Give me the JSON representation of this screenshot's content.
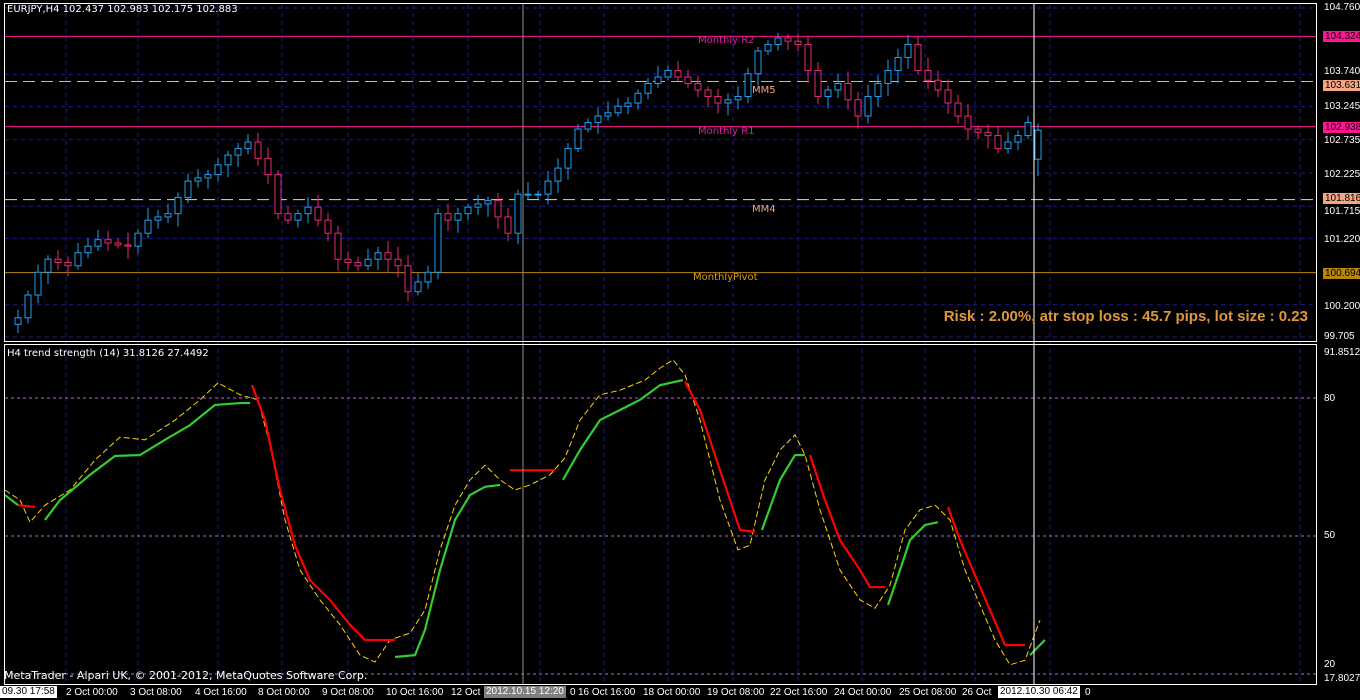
{
  "price_panel": {
    "title": "EURJPY,H4  102.437 102.983 102.175 102.883",
    "axis_labels": [
      "104.760",
      "103.740",
      "103.245",
      "102.735",
      "102.225",
      "101.715",
      "101.220",
      "100.200",
      "99.705"
    ],
    "axis_values": [
      104.76,
      103.74,
      103.245,
      102.735,
      102.225,
      101.715,
      101.22,
      100.2,
      99.705
    ],
    "range": [
      99.705,
      104.76
    ],
    "levels": [
      {
        "name": "Monthly R2",
        "value": 104.324,
        "label": "104.324",
        "color": "#ff1493",
        "style": "solid",
        "text_color": "#e0209a"
      },
      {
        "name": "MM5",
        "value": 103.631,
        "label": "103.631",
        "color": "#f4a582",
        "style": "dashed",
        "text_color": "#f4a582"
      },
      {
        "name": "Monthly R1",
        "value": 102.938,
        "label": "102.938",
        "color": "#ff1493",
        "style": "solid",
        "text_color": "#e0209a"
      },
      {
        "name": "MM4",
        "value": 101.816,
        "label": "101.816",
        "color": "#d8d8d8",
        "style": "dashed",
        "text_color": "#f4a582",
        "label_bg": "#f4a582"
      },
      {
        "name": "MonthlyPivot",
        "value": 100.694,
        "label": "100.694",
        "color": "#b8860b",
        "style": "solid",
        "text_color": "#d4a017"
      }
    ],
    "risk_text": "Risk : 2.00%, atr stop loss : 45.7 pips, lot size : 0.23",
    "colors": {
      "bull": "#1ea0f0",
      "bear": "#e8287a",
      "grid": "#1a1aa0"
    }
  },
  "chart_data": [
    {
      "type": "candlestick",
      "title": "EURJPY,H4",
      "ylim": [
        99.705,
        104.76
      ],
      "last_bar": {
        "open": 102.437,
        "high": 102.983,
        "low": 102.175,
        "close": 102.883
      },
      "closes": [
        100.0,
        100.35,
        100.7,
        100.9,
        100.85,
        100.8,
        101.0,
        101.1,
        101.2,
        101.15,
        101.12,
        101.1,
        101.3,
        101.5,
        101.55,
        101.6,
        101.85,
        102.1,
        102.15,
        102.2,
        102.35,
        102.5,
        102.6,
        102.7,
        102.45,
        102.2,
        101.6,
        101.5,
        101.6,
        101.7,
        101.5,
        101.3,
        100.9,
        100.85,
        100.8,
        100.9,
        101.0,
        100.9,
        100.8,
        100.4,
        100.55,
        100.7,
        101.6,
        101.5,
        101.6,
        101.7,
        101.75,
        101.8,
        101.55,
        101.3,
        101.9,
        101.9,
        101.9,
        102.1,
        102.3,
        102.6,
        102.9,
        103.0,
        103.1,
        103.15,
        103.25,
        103.3,
        103.45,
        103.6,
        103.7,
        103.8,
        103.7,
        103.6,
        103.5,
        103.4,
        103.3,
        103.35,
        103.4,
        103.75,
        104.1,
        104.2,
        104.3,
        104.25,
        104.2,
        103.8,
        103.4,
        103.5,
        103.6,
        103.35,
        103.1,
        103.4,
        103.6,
        103.8,
        104.0,
        104.2,
        103.8,
        103.65,
        103.5,
        103.3,
        103.1,
        102.9,
        102.85,
        102.8,
        102.6,
        102.7,
        102.8,
        103.0,
        102.883
      ]
    },
    {
      "type": "line",
      "title": "trend strength (14) 31.8126 27.4492",
      "ylim": [
        17.8027,
        91.8512
      ],
      "levels": [
        80,
        50,
        20
      ],
      "main_segments": [
        {
          "trend": "up",
          "points": [
            [
              -1.3,
              58.9
            ],
            [
              0,
              56.7
            ]
          ]
        },
        {
          "trend": "down",
          "points": [
            [
              0,
              56.7
            ],
            [
              1.7,
              56.3
            ]
          ]
        },
        {
          "trend": "up",
          "points": [
            [
              2.7,
              53.5
            ],
            [
              4.2,
              57.8
            ],
            [
              7.2,
              63.3
            ],
            [
              9.7,
              67.4
            ],
            [
              12.2,
              67.6
            ],
            [
              14.7,
              70.9
            ],
            [
              17.2,
              74.1
            ],
            [
              19.7,
              78.5
            ],
            [
              22.2,
              78.9
            ],
            [
              23.2,
              78.9
            ]
          ]
        },
        {
          "trend": "down",
          "points": [
            [
              23.4,
              82.8
            ],
            [
              24.7,
              75.2
            ],
            [
              26.2,
              60.0
            ],
            [
              27.7,
              48.0
            ],
            [
              29.2,
              40.4
            ],
            [
              31.2,
              36.1
            ],
            [
              33.2,
              30.7
            ],
            [
              34.7,
              27.4
            ],
            [
              37.7,
              27.4
            ]
          ]
        },
        {
          "trend": "up",
          "points": [
            [
              37.7,
              23.7
            ],
            [
              39.7,
              24.1
            ],
            [
              40.7,
              29.6
            ],
            [
              42.2,
              42.6
            ],
            [
              43.7,
              53.5
            ],
            [
              45.2,
              58.9
            ],
            [
              46.7,
              60.7
            ],
            [
              48.2,
              61.1
            ]
          ]
        },
        {
          "trend": "down",
          "points": [
            [
              49.2,
              64.3
            ],
            [
              53.7,
              64.3
            ]
          ]
        },
        {
          "trend": "up",
          "points": [
            [
              54.5,
              62.2
            ],
            [
              56.2,
              68.7
            ],
            [
              58.2,
              75.2
            ],
            [
              60.2,
              77.4
            ],
            [
              62.2,
              79.6
            ],
            [
              64.2,
              82.8
            ],
            [
              66.5,
              83.9
            ]
          ]
        },
        {
          "trend": "down",
          "points": [
            [
              66.7,
              83.5
            ],
            [
              68.2,
              77.4
            ],
            [
              70.2,
              64.3
            ],
            [
              72.2,
              51.3
            ],
            [
              73.7,
              50.9
            ]
          ]
        },
        {
          "trend": "up",
          "points": [
            [
              74.4,
              51.3
            ],
            [
              76.2,
              62.2
            ],
            [
              77.7,
              67.6
            ],
            [
              78.7,
              67.6
            ]
          ]
        },
        {
          "trend": "down",
          "points": [
            [
              79.2,
              67.6
            ],
            [
              80.7,
              57.8
            ],
            [
              82.2,
              49.1
            ],
            [
              84.2,
              42.6
            ],
            [
              85.2,
              38.9
            ],
            [
              86.7,
              38.9
            ]
          ]
        },
        {
          "trend": "up",
          "points": [
            [
              87.0,
              35.0
            ],
            [
              88.2,
              42.6
            ],
            [
              89.2,
              49.1
            ],
            [
              90.7,
              52.4
            ],
            [
              92.0,
              53.0
            ]
          ]
        },
        {
          "trend": "down",
          "points": [
            [
              93.0,
              56.3
            ],
            [
              94.2,
              49.1
            ],
            [
              95.7,
              41.5
            ],
            [
              97.2,
              33.9
            ],
            [
              98.7,
              26.3
            ],
            [
              100.7,
              26.3
            ]
          ]
        },
        {
          "trend": "up",
          "points": [
            [
              101.2,
              24.1
            ],
            [
              102.7,
              27.4
            ]
          ]
        }
      ],
      "signal": [
        [
          -1.3,
          60.0
        ],
        [
          0.2,
          57.8
        ],
        [
          1.2,
          53.0
        ],
        [
          2.7,
          56.7
        ],
        [
          5.2,
          60.0
        ],
        [
          7.7,
          66.5
        ],
        [
          10.2,
          71.5
        ],
        [
          12.7,
          70.9
        ],
        [
          15.7,
          75.2
        ],
        [
          18.2,
          79.6
        ],
        [
          20.0,
          83.3
        ],
        [
          22.2,
          80.7
        ],
        [
          24.0,
          79.6
        ],
        [
          25.2,
          69.8
        ],
        [
          26.7,
          53.5
        ],
        [
          28.2,
          42.6
        ],
        [
          30.2,
          36.1
        ],
        [
          32.2,
          30.7
        ],
        [
          34.2,
          24.1
        ],
        [
          35.7,
          22.6
        ],
        [
          37.2,
          27.4
        ],
        [
          39.2,
          28.9
        ],
        [
          40.7,
          33.9
        ],
        [
          42.2,
          47.0
        ],
        [
          43.7,
          56.7
        ],
        [
          45.2,
          62.2
        ],
        [
          46.7,
          65.4
        ],
        [
          48.2,
          62.2
        ],
        [
          49.7,
          60.0
        ],
        [
          51.2,
          61.1
        ],
        [
          53.2,
          63.3
        ],
        [
          54.7,
          67.0
        ],
        [
          56.2,
          75.2
        ],
        [
          58.2,
          80.7
        ],
        [
          60.2,
          81.7
        ],
        [
          62.7,
          83.9
        ],
        [
          64.2,
          86.5
        ],
        [
          65.5,
          88.3
        ],
        [
          66.7,
          85.0
        ],
        [
          68.2,
          75.2
        ],
        [
          70.2,
          57.8
        ],
        [
          72.0,
          47.0
        ],
        [
          73.2,
          48.0
        ],
        [
          74.7,
          62.2
        ],
        [
          76.2,
          68.7
        ],
        [
          77.7,
          72.0
        ],
        [
          78.7,
          67.6
        ],
        [
          80.2,
          55.7
        ],
        [
          82.2,
          42.6
        ],
        [
          84.2,
          36.1
        ],
        [
          85.7,
          34.3
        ],
        [
          87.2,
          39.3
        ],
        [
          88.7,
          51.3
        ],
        [
          90.2,
          55.7
        ],
        [
          91.7,
          56.7
        ],
        [
          93.2,
          53.5
        ],
        [
          94.7,
          42.6
        ],
        [
          96.2,
          35.0
        ],
        [
          97.7,
          27.4
        ],
        [
          99.2,
          22.0
        ],
        [
          100.7,
          23.0
        ],
        [
          102.2,
          31.7
        ]
      ],
      "colors": {
        "up": "#32cd32",
        "down": "#ff0000",
        "signal": "#ffd700",
        "levels": "#c060e0"
      }
    }
  ],
  "indicator_panel": {
    "title": "H4  trend strength (14) 31.8126 27.4492",
    "axis_labels": [
      "91.8512",
      "80",
      "50",
      "20",
      "17.8027"
    ]
  },
  "time_axis": {
    "labels": [
      "2 Oct 00:00",
      "3 Oct 08:00",
      "4 Oct 16:00",
      "8 Oct 00:00",
      "9 Oct 08:00",
      "10 Oct 16:00",
      "12 Oct",
      "16 Oct 16:00",
      "18 Oct 00:00",
      "19 Oct 08:00",
      "22 Oct 16:00",
      "24 Oct 00:00",
      "25 Oct 08:00",
      "26 Oct"
    ],
    "start_box": "09.30 17:58",
    "cursor_box": "2012.10.15 12:20",
    "cursor_tail": "0",
    "end_box": "2012.10.30 06:42",
    "end_tail": "0"
  },
  "copyright": "MetaTrader - Alpari UK, © 2001-2012, MetaQuotes Software Corp."
}
